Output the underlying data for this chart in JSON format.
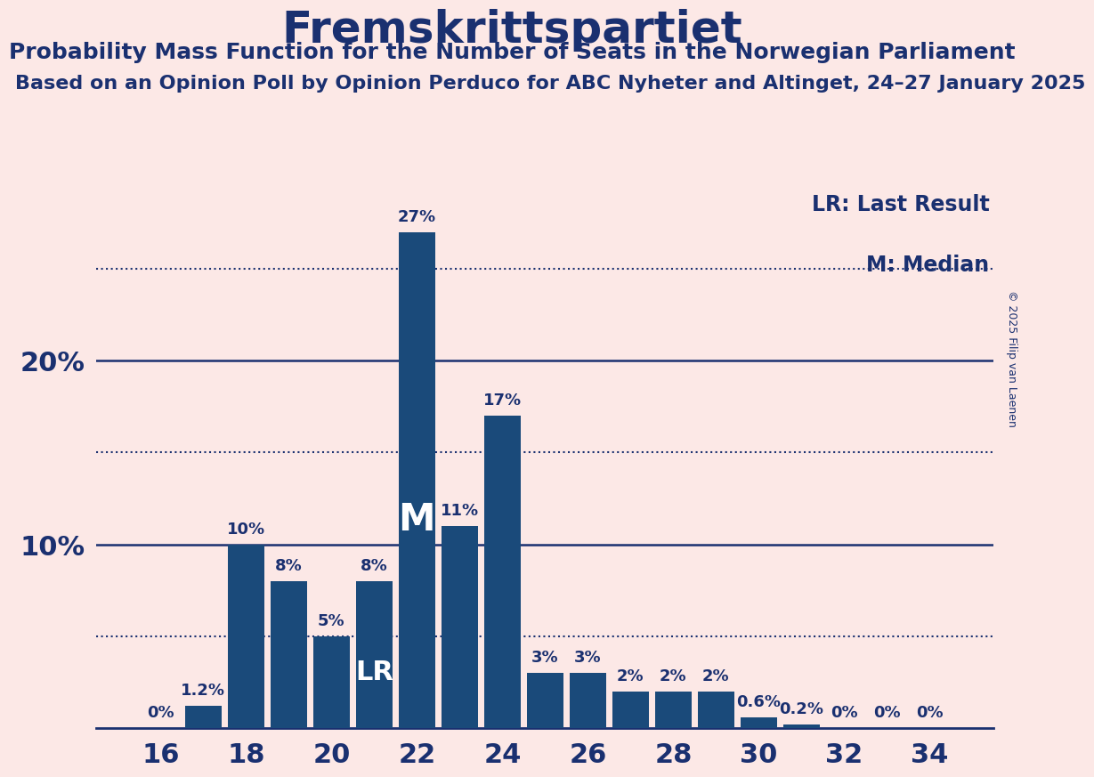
{
  "title": "Fremskrittspartiet",
  "subtitle1": "Probability Mass Function for the Number of Seats in the Norwegian Parliament",
  "subtitle2": "Based on an Opinion Poll by Opinion Perduco for ABC Nyheter and Altinget, 24–27 January 2025",
  "copyright": "© 2025 Filip van Laenen",
  "seats": [
    16,
    17,
    18,
    19,
    20,
    21,
    22,
    23,
    24,
    25,
    26,
    27,
    28,
    29,
    30,
    31,
    32,
    33,
    34
  ],
  "probabilities": [
    0.0,
    1.2,
    10.0,
    8.0,
    5.0,
    8.0,
    27.0,
    11.0,
    17.0,
    3.0,
    3.0,
    2.0,
    2.0,
    2.0,
    0.6,
    0.2,
    0.0,
    0.0,
    0.0
  ],
  "bar_color": "#1a4a7a",
  "background_color": "#fce8e6",
  "text_color": "#1a3070",
  "lr_seat": 21,
  "median_seat": 22,
  "dotted_lines": [
    5,
    15,
    25
  ],
  "solid_lines": [
    10,
    20
  ],
  "legend_lr": "LR: Last Result",
  "legend_m": "M: Median",
  "bar_label_fontsize": 13,
  "title_fontsize": 36,
  "subtitle1_fontsize": 18,
  "subtitle2_fontsize": 16,
  "axis_tick_fontsize": 22,
  "legend_fontsize": 17,
  "lr_label_fontsize": 22,
  "m_label_fontsize": 30
}
